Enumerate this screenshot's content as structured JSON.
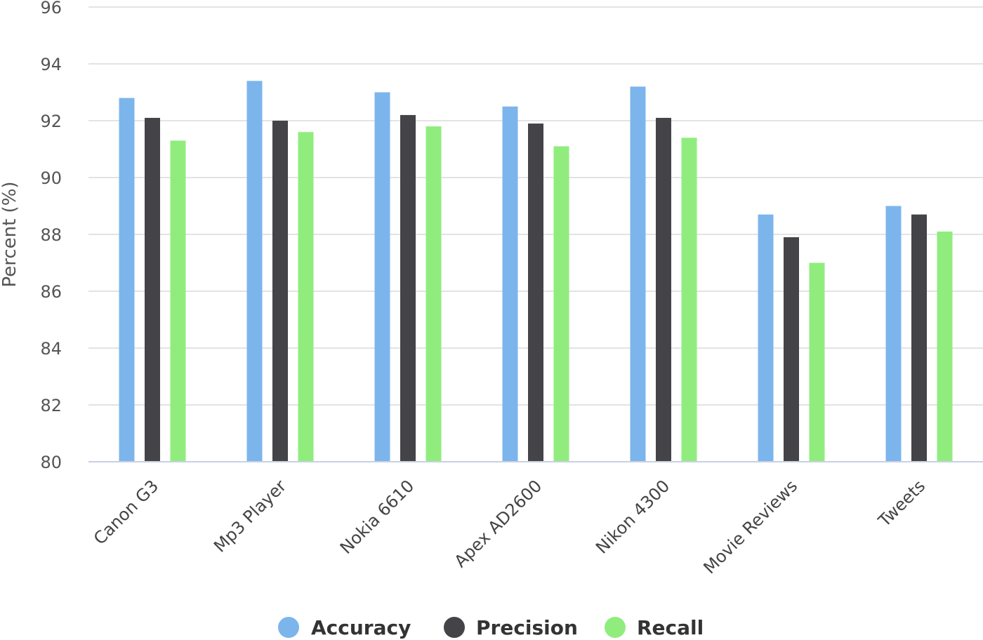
{
  "chart_data": {
    "type": "bar",
    "title": "",
    "xlabel": "",
    "ylabel": "Percent (%)",
    "ylim": [
      80,
      96
    ],
    "yticks": [
      80,
      82,
      84,
      86,
      88,
      90,
      92,
      94,
      96
    ],
    "grid": true,
    "legend_position": "bottom",
    "categories": [
      "Canon G3",
      "Mp3 Player",
      "Nokia 6610",
      "Apex AD2600",
      "Nikon 4300",
      "Movie Reviews",
      "Tweets"
    ],
    "series": [
      {
        "name": "Accuracy",
        "color": "#7cb5ec",
        "values": [
          92.8,
          93.4,
          93.0,
          92.5,
          93.2,
          88.7,
          89.0
        ]
      },
      {
        "name": "Precision",
        "color": "#434348",
        "values": [
          92.1,
          92.0,
          92.2,
          91.9,
          92.1,
          87.9,
          88.7
        ]
      },
      {
        "name": "Recall",
        "color": "#90ed7d",
        "values": [
          91.3,
          91.6,
          91.8,
          91.1,
          91.4,
          87.0,
          88.1
        ]
      }
    ]
  }
}
